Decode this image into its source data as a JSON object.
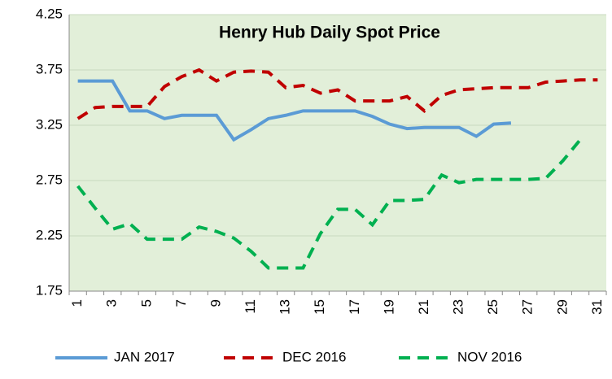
{
  "chart_data": {
    "type": "line",
    "title": "Henry Hub Daily Spot Price",
    "categories": [
      1,
      null,
      3,
      null,
      5,
      null,
      7,
      null,
      9,
      null,
      11,
      null,
      13,
      null,
      15,
      null,
      17,
      null,
      19,
      null,
      21,
      null,
      23,
      null,
      25,
      null,
      27,
      null,
      29,
      null,
      31
    ],
    "series": [
      {
        "name": "JAN 2017",
        "color": "#5b9bd5",
        "dash": "solid",
        "values": [
          3.65,
          3.65,
          3.65,
          3.38,
          3.38,
          3.31,
          3.34,
          3.34,
          3.34,
          3.12,
          3.21,
          3.31,
          3.34,
          3.38,
          3.38,
          3.38,
          3.38,
          3.33,
          3.26,
          3.22,
          3.23,
          3.23,
          3.23,
          3.15,
          3.26,
          3.27,
          null,
          null,
          null,
          null,
          null
        ]
      },
      {
        "name": "DEC 2016",
        "color": "#c00000",
        "dash": "dashed",
        "values": [
          3.31,
          3.41,
          3.42,
          3.42,
          3.42,
          3.6,
          3.69,
          3.75,
          3.65,
          3.73,
          3.74,
          3.73,
          3.59,
          3.61,
          3.54,
          3.57,
          3.47,
          3.47,
          3.47,
          3.51,
          3.38,
          3.52,
          3.57,
          3.58,
          3.59,
          3.59,
          3.59,
          3.64,
          3.65,
          3.66,
          3.66
        ]
      },
      {
        "name": "NOV 2016",
        "color": "#00b050",
        "dash": "dashed",
        "values": [
          2.7,
          2.5,
          2.31,
          2.36,
          2.22,
          2.22,
          2.22,
          2.33,
          2.29,
          2.23,
          2.11,
          1.96,
          1.96,
          1.96,
          2.27,
          2.49,
          2.49,
          2.35,
          2.57,
          2.57,
          2.58,
          2.8,
          2.73,
          2.76,
          2.76,
          2.76,
          2.76,
          2.77,
          2.93,
          3.12,
          null
        ]
      }
    ],
    "ylim": [
      1.75,
      4.25
    ],
    "yticks": [
      1.75,
      2.25,
      2.75,
      3.25,
      3.75,
      4.25
    ],
    "grid": true,
    "legend": "bottom"
  }
}
